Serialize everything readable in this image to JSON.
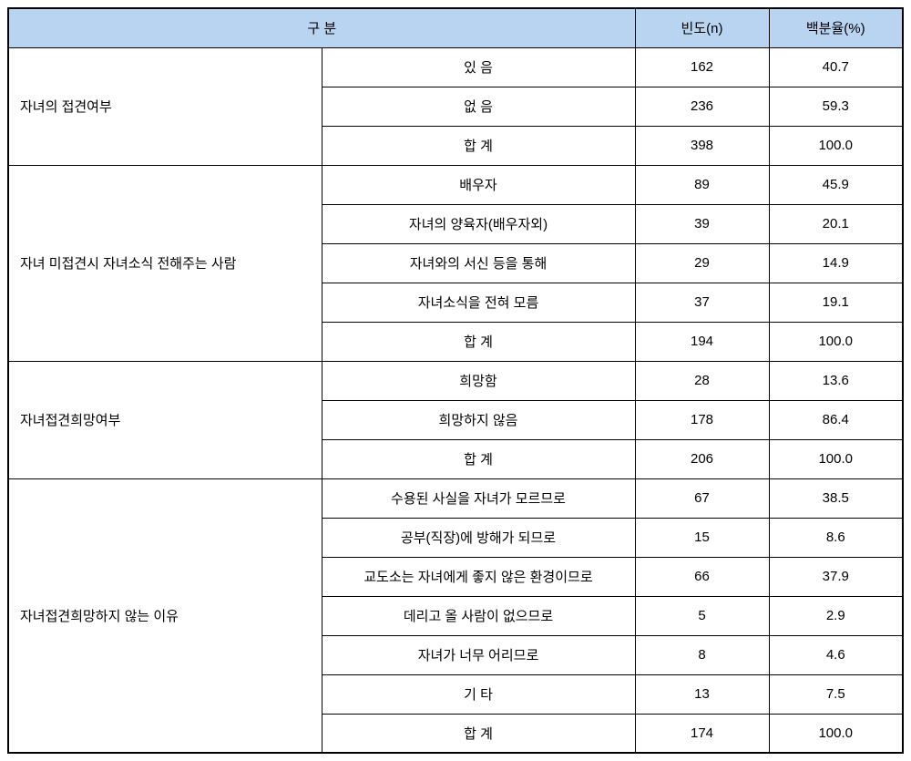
{
  "headers": {
    "category": "구 분",
    "frequency": "빈도(n)",
    "percentage": "백분율(%)"
  },
  "sections": [
    {
      "label": "자녀의 접견여부",
      "rows": [
        {
          "item": "있 음",
          "freq": "162",
          "pct": "40.7"
        },
        {
          "item": "없   음",
          "freq": "236",
          "pct": "59.3"
        },
        {
          "item": "합 계",
          "freq": "398",
          "pct": "100.0"
        }
      ]
    },
    {
      "label": "자녀 미접견시 자녀소식 전해주는 사람",
      "rows": [
        {
          "item": "배우자",
          "freq": "89",
          "pct": "45.9"
        },
        {
          "item": "자녀의 양육자(배우자외)",
          "freq": "39",
          "pct": "20.1"
        },
        {
          "item": "자녀와의 서신 등을 통해",
          "freq": "29",
          "pct": "14.9"
        },
        {
          "item": "자녀소식을 전혀 모름",
          "freq": "37",
          "pct": "19.1"
        },
        {
          "item": "합 계",
          "freq": "194",
          "pct": "100.0"
        }
      ]
    },
    {
      "label": "자녀접견희망여부",
      "rows": [
        {
          "item": "희망함",
          "freq": "28",
          "pct": "13.6"
        },
        {
          "item": "희망하지 않음",
          "freq": "178",
          "pct": "86.4"
        },
        {
          "item": "합 계",
          "freq": "206",
          "pct": "100.0"
        }
      ]
    },
    {
      "label": "자녀접견희망하지  않는 이유",
      "rows": [
        {
          "item": "수용된 사실을 자녀가 모르므로",
          "freq": "67",
          "pct": "38.5"
        },
        {
          "item": "공부(직장)에 방해가 되므로",
          "freq": "15",
          "pct": "8.6"
        },
        {
          "item": "교도소는 자녀에게 좋지 않은 환경이므로",
          "freq": "66",
          "pct": "37.9"
        },
        {
          "item": "데리고 올 사람이 없으므로",
          "freq": "5",
          "pct": "2.9"
        },
        {
          "item": "자녀가 너무 어리므로",
          "freq": "8",
          "pct": "4.6"
        },
        {
          "item": "기 타",
          "freq": "13",
          "pct": "7.5"
        },
        {
          "item": "합 계",
          "freq": "174",
          "pct": "100.0"
        }
      ]
    }
  ]
}
